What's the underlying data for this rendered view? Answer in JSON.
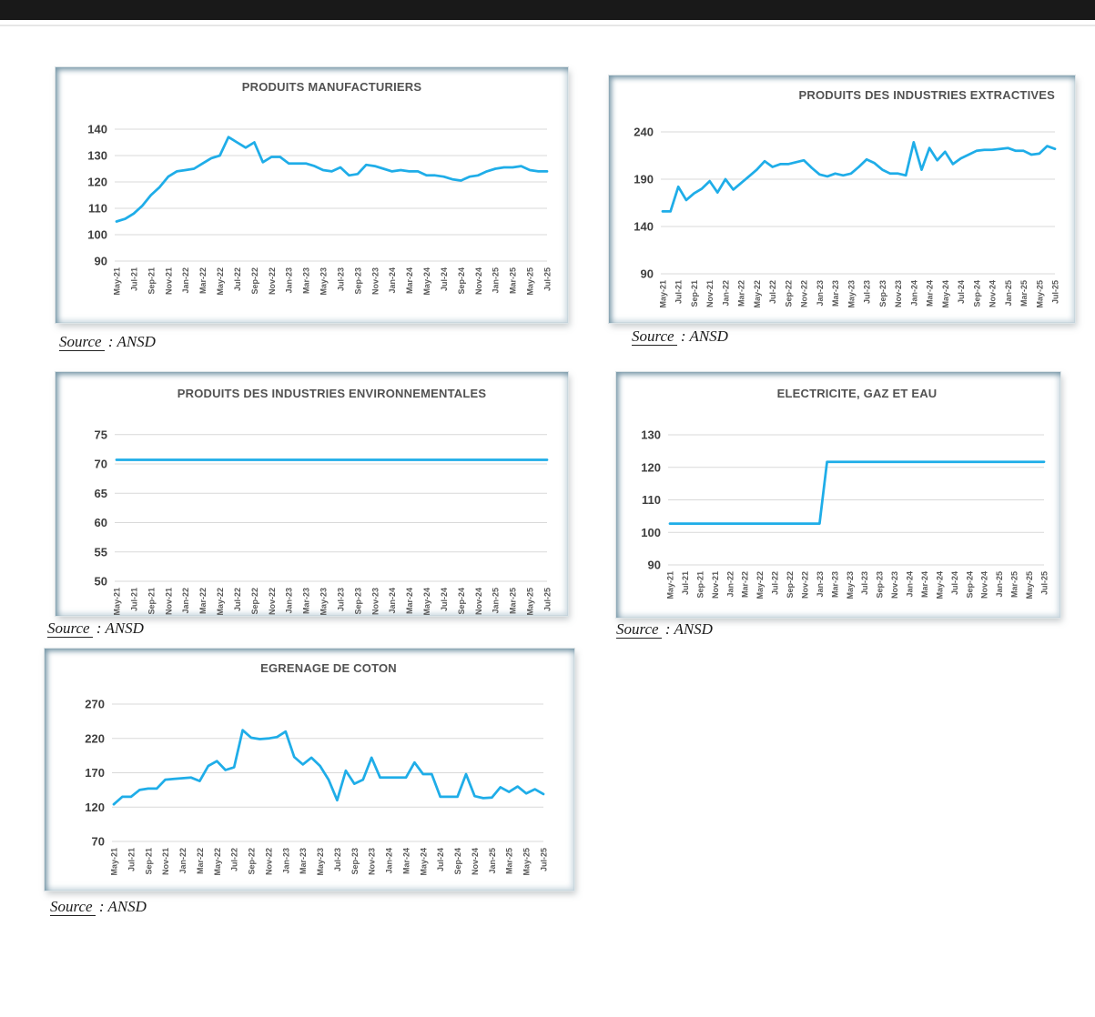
{
  "source": {
    "label": "Source",
    "separator": " : ",
    "agency": "ANSD"
  },
  "chart_data": {
    "type": "line",
    "x_categories": [
      "May-21",
      "Jun-21",
      "Jul-21",
      "Aug-21",
      "Sep-21",
      "Oct-21",
      "Nov-21",
      "Dec-21",
      "Jan-22",
      "Feb-22",
      "Mar-22",
      "Apr-22",
      "May-22",
      "Jun-22",
      "Jul-22",
      "Aug-22",
      "Sep-22",
      "Oct-22",
      "Nov-22",
      "Dec-22",
      "Jan-23",
      "Feb-23",
      "Mar-23",
      "Apr-23",
      "May-23",
      "Jun-23",
      "Jul-23",
      "Aug-23",
      "Sep-23",
      "Oct-23",
      "Nov-23",
      "Dec-23",
      "Jan-24",
      "Feb-24",
      "Mar-24",
      "Apr-24",
      "May-24",
      "Jun-24",
      "Jul-24",
      "Aug-24",
      "Sep-24",
      "Oct-24",
      "Nov-24",
      "Dec-24",
      "Jan-25",
      "Feb-25",
      "Mar-25",
      "Apr-25",
      "May-25",
      "Jun-25",
      "Jul-25"
    ],
    "x_label_every": 2,
    "line_color": "#1FADE8",
    "grid_color": "#D9D9D9",
    "axis_label_color": "#595959",
    "y_label_color": "#3F3F3F",
    "grid": true,
    "legend": "none",
    "charts": [
      {
        "title": "PRODUITS MANUFACTURIERS",
        "y_ticks": [
          90,
          100,
          110,
          120,
          130,
          140
        ],
        "ylim": [
          90,
          148
        ],
        "values": [
          105,
          106,
          108,
          111,
          115,
          118,
          122,
          124,
          124.5,
          125,
          127,
          129,
          130,
          137,
          135,
          133,
          135,
          127.5,
          129.5,
          129.5,
          127,
          127,
          127,
          126,
          124.5,
          124,
          125.5,
          122.5,
          123,
          126.5,
          126,
          125,
          124,
          124.5,
          124,
          124,
          122.5,
          122.5,
          122,
          121,
          120.5,
          122,
          122.5,
          124,
          125,
          125.5,
          125.5,
          126,
          124.5,
          124,
          124
        ]
      },
      {
        "title": "PRODUITS DES INDUSTRIES EXTRACTIVES",
        "y_ticks": [
          90,
          140,
          190,
          240
        ],
        "ylim": [
          90,
          252
        ],
        "values": [
          156,
          156,
          182,
          168,
          175,
          180,
          188,
          176,
          190,
          179,
          186,
          193,
          200,
          209,
          203,
          206,
          206,
          208,
          210,
          202,
          195,
          193,
          196,
          194,
          196,
          203,
          211,
          207,
          200,
          196,
          196,
          194,
          229,
          200,
          223,
          210,
          219,
          206,
          212,
          216,
          220,
          221,
          221,
          222,
          223,
          220,
          220,
          216,
          217,
          225,
          222
        ]
      },
      {
        "title": "PRODUITS DES INDUSTRIES ENVIRONNEMENTALES",
        "y_ticks": [
          50,
          55,
          60,
          65,
          70,
          75
        ],
        "ylim": [
          50,
          78
        ],
        "values": [
          70.7,
          70.7,
          70.7,
          70.7,
          70.7,
          70.7,
          70.7,
          70.7,
          70.7,
          70.7,
          70.7,
          70.7,
          70.7,
          70.7,
          70.7,
          70.7,
          70.7,
          70.7,
          70.7,
          70.7,
          70.7,
          70.7,
          70.7,
          70.7,
          70.7,
          70.7,
          70.7,
          70.7,
          70.7,
          70.7,
          70.7,
          70.7,
          70.7,
          70.7,
          70.7,
          70.7,
          70.7,
          70.7,
          70.7,
          70.7,
          70.7,
          70.7,
          70.7,
          70.7,
          70.7,
          70.7,
          70.7,
          70.7,
          70.7,
          70.7,
          70.7
        ]
      },
      {
        "title": "ELECTRICITE, GAZ ET EAU",
        "y_ticks": [
          90,
          100,
          110,
          120,
          130
        ],
        "ylim": [
          90,
          136
        ],
        "values": [
          102.7,
          102.7,
          102.7,
          102.7,
          102.7,
          102.7,
          102.7,
          102.7,
          102.7,
          102.7,
          102.7,
          102.7,
          102.7,
          102.7,
          102.7,
          102.7,
          102.7,
          102.7,
          102.7,
          102.7,
          102.7,
          121.7,
          121.7,
          121.7,
          121.7,
          121.7,
          121.7,
          121.7,
          121.7,
          121.7,
          121.7,
          121.7,
          121.7,
          121.7,
          121.7,
          121.7,
          121.7,
          121.7,
          121.7,
          121.7,
          121.7,
          121.7,
          121.7,
          121.7,
          121.7,
          121.7,
          121.7,
          121.7,
          121.7,
          121.7,
          121.7
        ]
      },
      {
        "title": "EGRENAGE DE COTON",
        "y_ticks": [
          70,
          120,
          170,
          220,
          270
        ],
        "ylim": [
          70,
          288
        ],
        "values": [
          124,
          135,
          135,
          145,
          147,
          147,
          160,
          161,
          162,
          163,
          158,
          180,
          187,
          174,
          178,
          232,
          221,
          219,
          220,
          222,
          230,
          193,
          182,
          192,
          180,
          160,
          130,
          173,
          154,
          160,
          192,
          163,
          163,
          163,
          163,
          185,
          168,
          168,
          135,
          135,
          135,
          168,
          136,
          133,
          134,
          149,
          142,
          150,
          140,
          146,
          139
        ]
      }
    ]
  }
}
